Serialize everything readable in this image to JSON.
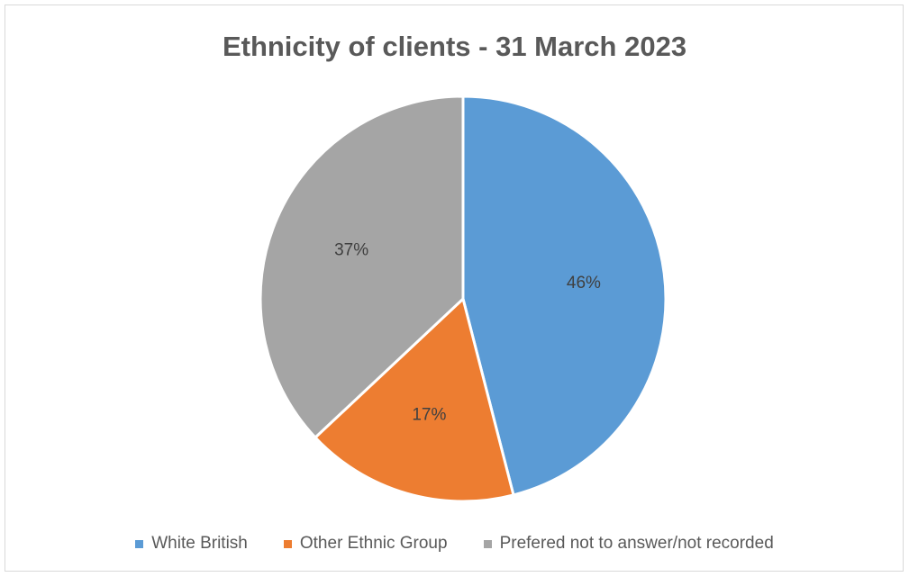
{
  "chart_data": {
    "type": "pie",
    "title": "Ethnicity of clients - 31 March 2023",
    "categories": [
      "White British",
      "Other Ethnic Group",
      "Prefered not to answer/not recorded"
    ],
    "values": [
      46,
      17,
      37
    ],
    "labels": [
      "46%",
      "17%",
      "37%"
    ],
    "colors": [
      "#5B9BD5",
      "#ED7D31",
      "#A5A5A5"
    ],
    "legend_position": "bottom"
  }
}
